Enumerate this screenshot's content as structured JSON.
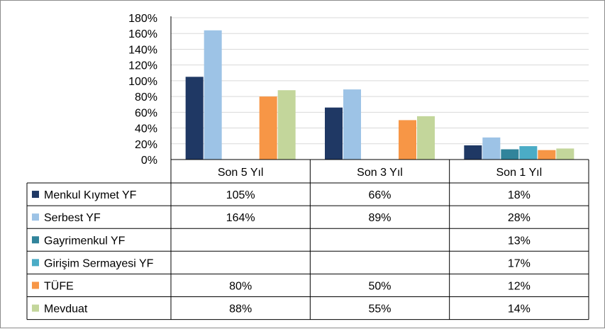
{
  "chart_data": {
    "type": "bar",
    "categories": [
      "Son 5 Yıl",
      "Son 3 Yıl",
      "Son 1 Yıl"
    ],
    "ylim": [
      0,
      180
    ],
    "yticks": [
      0,
      20,
      40,
      60,
      80,
      100,
      120,
      140,
      160,
      180
    ],
    "ytick_labels": [
      "0%",
      "20%",
      "40%",
      "60%",
      "80%",
      "100%",
      "120%",
      "140%",
      "160%",
      "180%"
    ],
    "grid": true,
    "legend": "data-table",
    "series": [
      {
        "name": "Menkul Kıymet YF",
        "color": "#1f3864",
        "values": [
          105,
          66,
          18
        ],
        "labels": [
          "105%",
          "66%",
          "18%"
        ]
      },
      {
        "name": "Serbest YF",
        "color": "#9dc3e6",
        "values": [
          164,
          89,
          28
        ],
        "labels": [
          "164%",
          "89%",
          "28%"
        ]
      },
      {
        "name": "Gayrimenkul YF",
        "color": "#31849b",
        "values": [
          null,
          null,
          13
        ],
        "labels": [
          "",
          "",
          "13%"
        ]
      },
      {
        "name": "Girişim Sermayesi YF",
        "color": "#4bacc6",
        "values": [
          null,
          null,
          17
        ],
        "labels": [
          "",
          "",
          "17%"
        ]
      },
      {
        "name": "TÜFE",
        "color": "#f79646",
        "values": [
          80,
          50,
          12
        ],
        "labels": [
          "80%",
          "50%",
          "12%"
        ]
      },
      {
        "name": "Mevduat",
        "color": "#c3d69b",
        "values": [
          88,
          55,
          14
        ],
        "labels": [
          "88%",
          "55%",
          "14%"
        ]
      }
    ]
  }
}
